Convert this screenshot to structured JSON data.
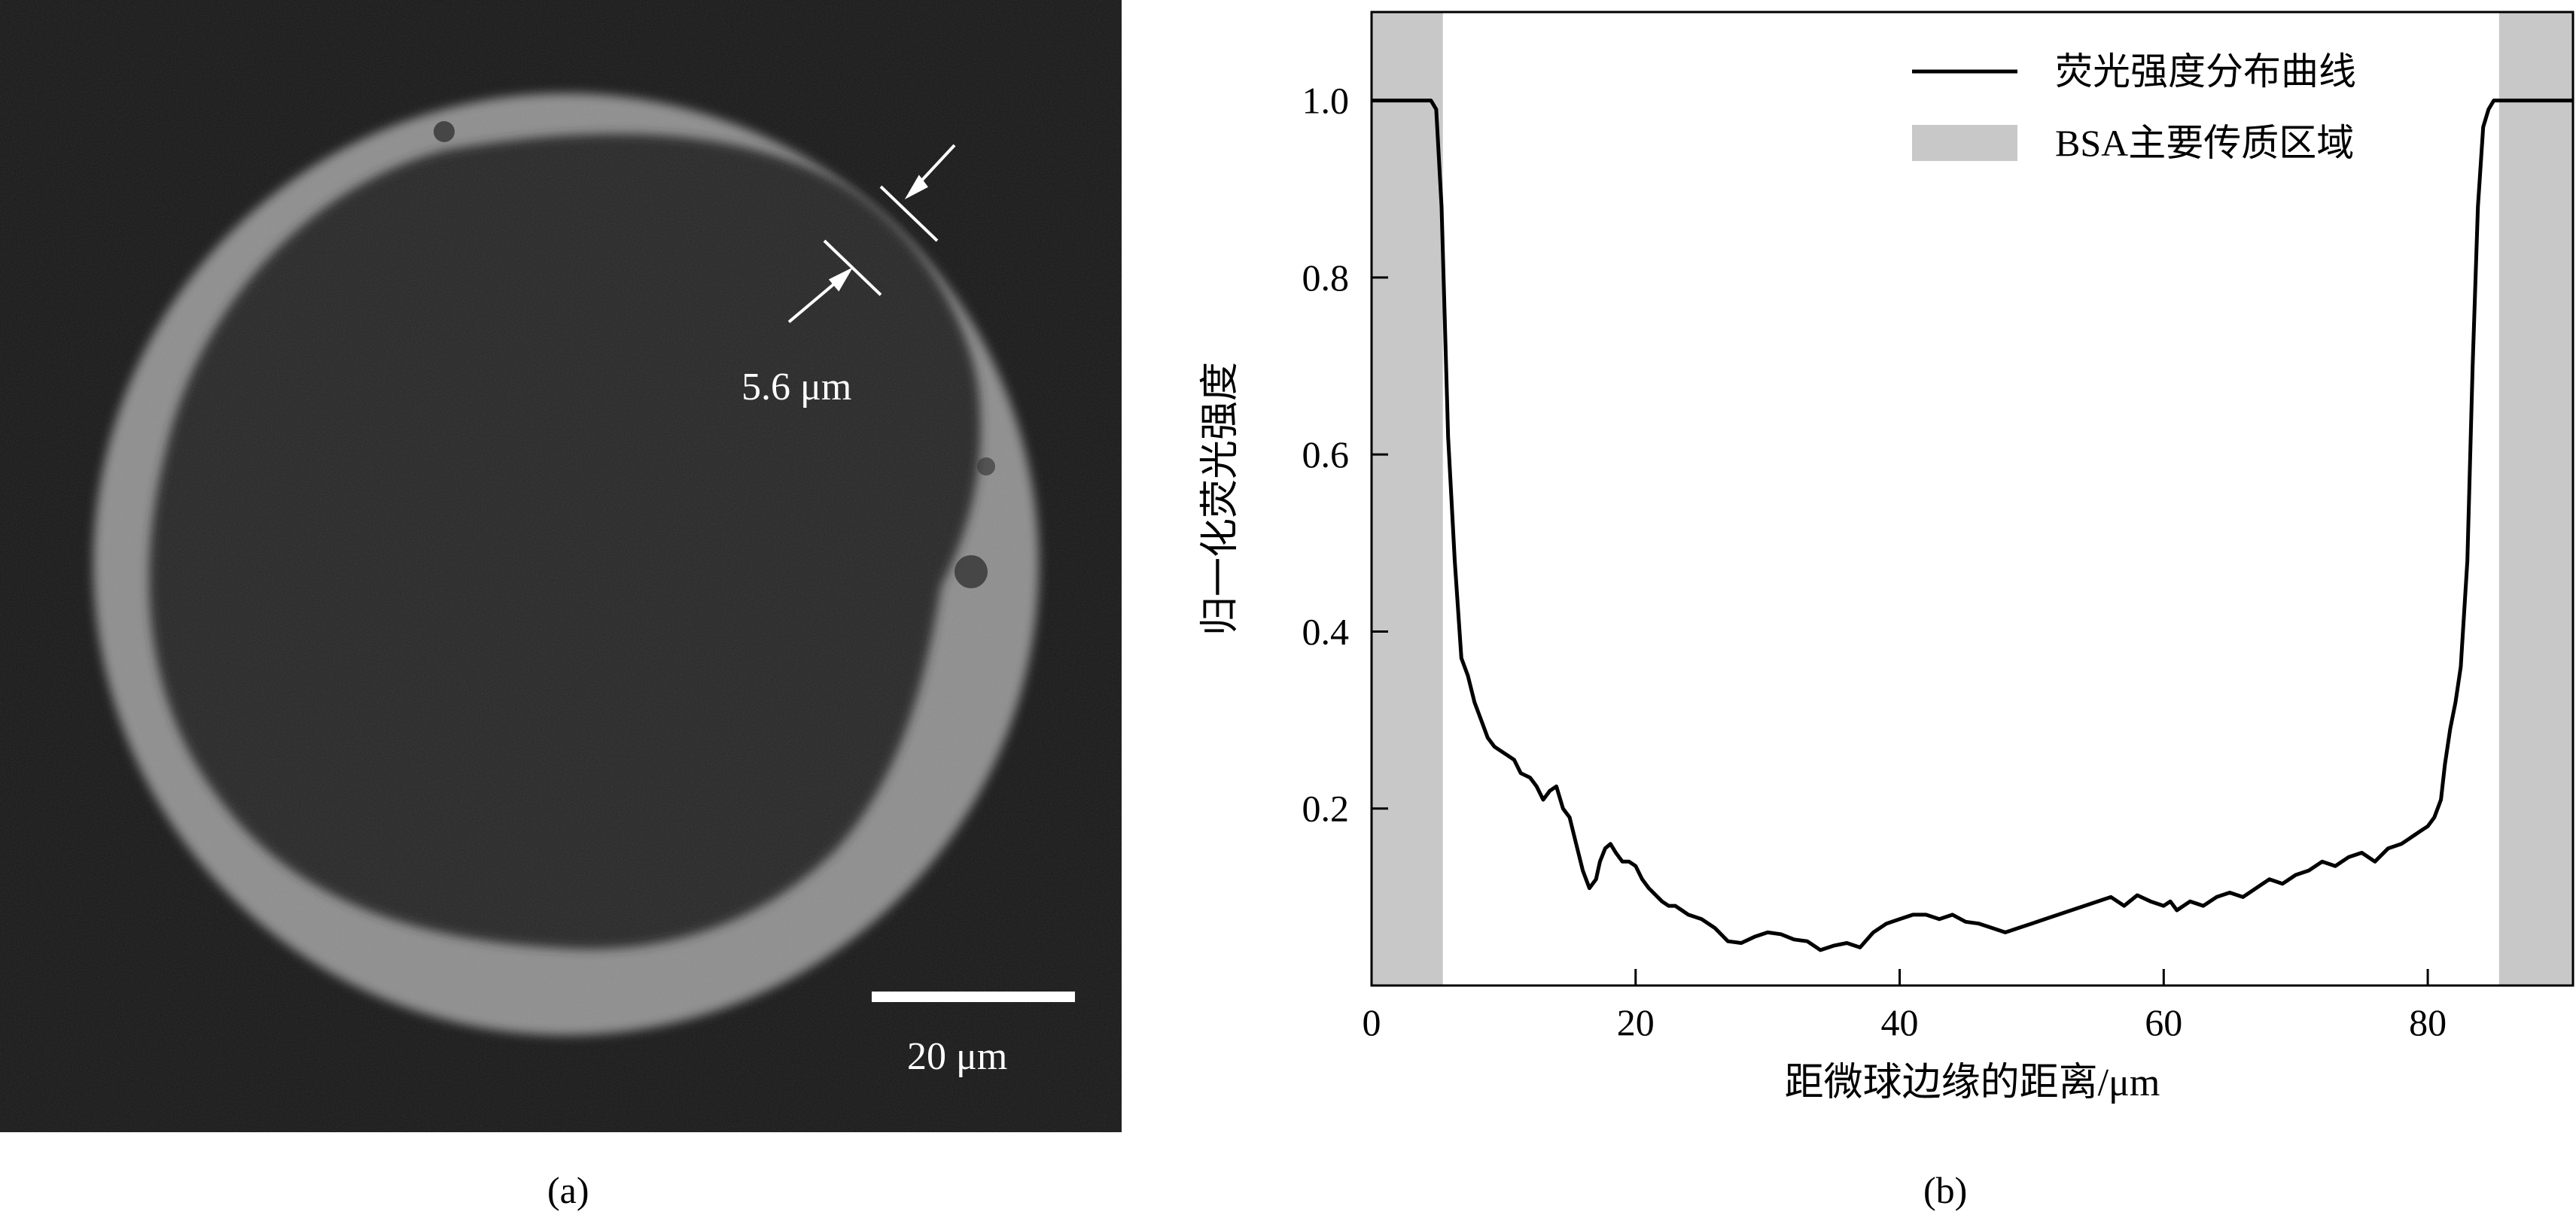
{
  "panel_a": {
    "thickness_label": "5.6 μm",
    "scale_bar_label": "20 μm",
    "caption": "(a)",
    "colors": {
      "background": "#1b1b1b",
      "ring": "#8f8f8f",
      "core": "#2c2c2c"
    }
  },
  "panel_b": {
    "caption": "(b)"
  },
  "chart_data": {
    "type": "line",
    "title": "",
    "xlabel": "距微球边缘的距离/μm",
    "ylabel": "归一化荧光强度",
    "xlim": [
      0,
      91
    ],
    "ylim": [
      0,
      1.1
    ],
    "xticks": [
      0,
      20,
      40,
      60,
      80
    ],
    "yticks": [
      0.2,
      0.4,
      0.6,
      0.8,
      1.0
    ],
    "xtick_labels": [
      "0",
      "20",
      "40",
      "60",
      "80"
    ],
    "ytick_labels": [
      "0.2",
      "0.4",
      "0.6",
      "0.8",
      "1.0"
    ],
    "grid": false,
    "legend": {
      "position": "top-right",
      "entries": [
        "荧光强度分布曲线",
        "BSA主要传质区域"
      ]
    },
    "shaded_regions": [
      {
        "name": "BSA主要传质区域",
        "x_range": [
          0,
          5.4
        ],
        "color": "#c8c8c8"
      },
      {
        "name": "BSA主要传质区域",
        "x_range": [
          85.4,
          91
        ],
        "color": "#c8c8c8"
      }
    ],
    "series": [
      {
        "name": "荧光强度分布曲线",
        "color": "#000000",
        "x": [
          0,
          4.5,
          4.9,
          5.3,
          5.8,
          6.3,
          6.8,
          7.3,
          7.8,
          8.3,
          8.8,
          9.3,
          9.8,
          10.3,
          10.8,
          11.3,
          12,
          12.5,
          13,
          13.5,
          14,
          14.5,
          15,
          15.5,
          16,
          16.5,
          17,
          17.3,
          17.7,
          18.1,
          18.5,
          19,
          19.5,
          20,
          20.5,
          21,
          22,
          22.5,
          23,
          23.5,
          24,
          25,
          26,
          27,
          28,
          29,
          30,
          31,
          32,
          33,
          34,
          35,
          36,
          37,
          38,
          39,
          40,
          41,
          42,
          43,
          44,
          45,
          46,
          47,
          48,
          49,
          50,
          51,
          52,
          53,
          54,
          55,
          56,
          57,
          58,
          59,
          60,
          60.5,
          61,
          61.5,
          62,
          63,
          64,
          65,
          66,
          67,
          68,
          69,
          70,
          71,
          72,
          73,
          74,
          75,
          76,
          77,
          78,
          78.5,
          79,
          79.5,
          80,
          80.5,
          81,
          81.3,
          81.7,
          82.1,
          82.5,
          83,
          83.4,
          83.8,
          84.2,
          84.6,
          85,
          85.4,
          86,
          91
        ],
        "y": [
          1.0,
          1.0,
          0.99,
          0.88,
          0.62,
          0.48,
          0.37,
          0.35,
          0.32,
          0.3,
          0.28,
          0.27,
          0.265,
          0.26,
          0.255,
          0.24,
          0.235,
          0.225,
          0.21,
          0.22,
          0.225,
          0.2,
          0.19,
          0.16,
          0.13,
          0.11,
          0.12,
          0.14,
          0.155,
          0.16,
          0.15,
          0.14,
          0.14,
          0.135,
          0.12,
          0.11,
          0.095,
          0.09,
          0.09,
          0.085,
          0.08,
          0.075,
          0.065,
          0.05,
          0.048,
          0.055,
          0.06,
          0.058,
          0.052,
          0.05,
          0.04,
          0.045,
          0.048,
          0.043,
          0.06,
          0.07,
          0.075,
          0.08,
          0.08,
          0.075,
          0.08,
          0.072,
          0.07,
          0.065,
          0.06,
          0.065,
          0.07,
          0.075,
          0.08,
          0.085,
          0.09,
          0.095,
          0.1,
          0.09,
          0.102,
          0.095,
          0.09,
          0.095,
          0.085,
          0.09,
          0.095,
          0.09,
          0.1,
          0.105,
          0.1,
          0.11,
          0.12,
          0.115,
          0.125,
          0.13,
          0.14,
          0.135,
          0.145,
          0.15,
          0.14,
          0.155,
          0.16,
          0.165,
          0.17,
          0.175,
          0.18,
          0.19,
          0.21,
          0.25,
          0.29,
          0.32,
          0.36,
          0.48,
          0.7,
          0.88,
          0.97,
          0.99,
          1.0,
          1.0,
          1.0,
          1.0
        ]
      }
    ]
  }
}
